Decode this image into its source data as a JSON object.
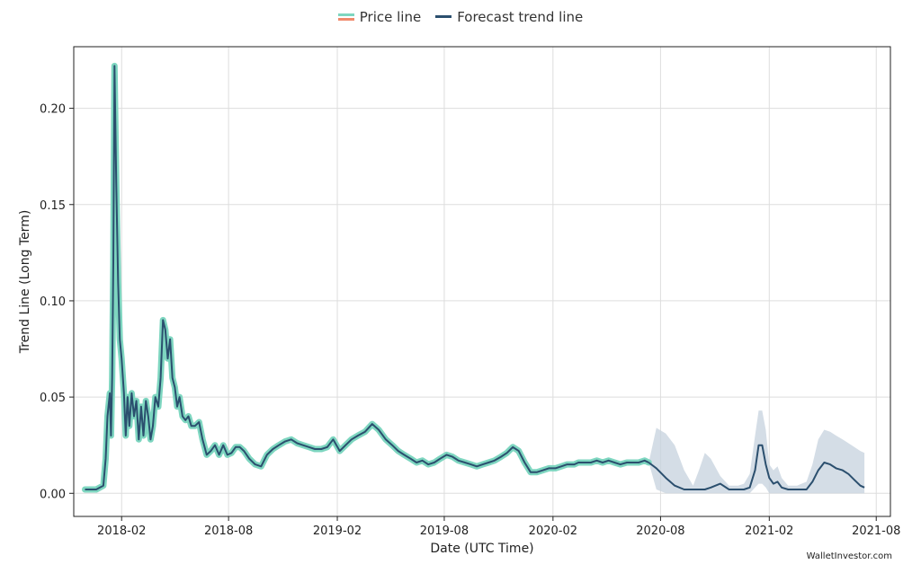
{
  "legend": {
    "price_label": "Price line",
    "forecast_label": "Forecast trend line"
  },
  "watermark": "WalletInvestor.com",
  "colors": {
    "price": "#7ed6c0",
    "price_accent": "#f08a6c",
    "trend": "#2b4f6e",
    "band": "#c6d2de",
    "grid": "#dddddd"
  },
  "chart_data": {
    "type": "line",
    "title": "",
    "xlabel": "Date (UTC Time)",
    "ylabel": "Trend Line (Long Term)",
    "x_ticks": [
      "2018-02",
      "2018-08",
      "2019-02",
      "2019-08",
      "2020-02",
      "2020-08",
      "2021-02",
      "2021-08"
    ],
    "y_ticks": [
      "0.00",
      "0.05",
      "0.10",
      "0.15",
      "0.20"
    ],
    "xlim": [
      "2017-11-12",
      "2021-08-25"
    ],
    "ylim": [
      -0.012,
      0.232
    ],
    "grid": true,
    "legend_position": "top-center",
    "series": [
      {
        "name": "Price line",
        "x": [
          "2017-12-01",
          "2017-12-20",
          "2018-01-01",
          "2018-01-05",
          "2018-01-08",
          "2018-01-12",
          "2018-01-14",
          "2018-01-16",
          "2018-01-18",
          "2018-01-20",
          "2018-01-23",
          "2018-01-26",
          "2018-01-29",
          "2018-02-01",
          "2018-02-05",
          "2018-02-08",
          "2018-02-11",
          "2018-02-14",
          "2018-02-18",
          "2018-02-22",
          "2018-02-26",
          "2018-03-02",
          "2018-03-06",
          "2018-03-10",
          "2018-03-14",
          "2018-03-18",
          "2018-03-22",
          "2018-03-26",
          "2018-03-30",
          "2018-04-04",
          "2018-04-08",
          "2018-04-12",
          "2018-04-16",
          "2018-04-20",
          "2018-04-24",
          "2018-04-28",
          "2018-05-02",
          "2018-05-06",
          "2018-05-10",
          "2018-05-15",
          "2018-05-20",
          "2018-05-25",
          "2018-05-30",
          "2018-06-05",
          "2018-06-12",
          "2018-06-18",
          "2018-06-25",
          "2018-07-02",
          "2018-07-09",
          "2018-07-16",
          "2018-07-23",
          "2018-07-30",
          "2018-08-06",
          "2018-08-13",
          "2018-08-20",
          "2018-08-27",
          "2018-09-05",
          "2018-09-15",
          "2018-09-25",
          "2018-10-05",
          "2018-10-15",
          "2018-10-25",
          "2018-11-05",
          "2018-11-15",
          "2018-11-25",
          "2018-12-05",
          "2018-12-15",
          "2018-12-25",
          "2019-01-05",
          "2019-01-15",
          "2019-01-25",
          "2019-02-05",
          "2019-02-15",
          "2019-02-25",
          "2019-03-08",
          "2019-03-20",
          "2019-04-01",
          "2019-04-12",
          "2019-04-24",
          "2019-05-05",
          "2019-05-15",
          "2019-05-25",
          "2019-06-05",
          "2019-06-15",
          "2019-06-25",
          "2019-07-05",
          "2019-07-15",
          "2019-07-25",
          "2019-08-05",
          "2019-08-15",
          "2019-08-25",
          "2019-09-05",
          "2019-09-15",
          "2019-09-25",
          "2019-10-05",
          "2019-10-15",
          "2019-10-25",
          "2019-11-05",
          "2019-11-15",
          "2019-11-25",
          "2019-12-05",
          "2019-12-15",
          "2019-12-25",
          "2020-01-05",
          "2020-01-15",
          "2020-01-25",
          "2020-02-05",
          "2020-02-15",
          "2020-02-25",
          "2020-03-08",
          "2020-03-15",
          "2020-03-25",
          "2020-04-05",
          "2020-04-15",
          "2020-04-25",
          "2020-05-05",
          "2020-05-15",
          "2020-05-25",
          "2020-06-05",
          "2020-06-15",
          "2020-06-25",
          "2020-07-05",
          "2020-07-12"
        ],
        "values": [
          0.002,
          0.002,
          0.004,
          0.018,
          0.04,
          0.052,
          0.03,
          0.06,
          0.12,
          0.222,
          0.16,
          0.11,
          0.08,
          0.07,
          0.052,
          0.03,
          0.05,
          0.035,
          0.052,
          0.04,
          0.048,
          0.028,
          0.045,
          0.03,
          0.048,
          0.04,
          0.028,
          0.035,
          0.05,
          0.045,
          0.06,
          0.09,
          0.085,
          0.07,
          0.08,
          0.06,
          0.055,
          0.045,
          0.05,
          0.04,
          0.038,
          0.04,
          0.035,
          0.035,
          0.037,
          0.028,
          0.02,
          0.022,
          0.025,
          0.02,
          0.025,
          0.02,
          0.021,
          0.024,
          0.024,
          0.022,
          0.018,
          0.015,
          0.014,
          0.02,
          0.023,
          0.025,
          0.027,
          0.028,
          0.026,
          0.025,
          0.024,
          0.023,
          0.023,
          0.024,
          0.028,
          0.022,
          0.025,
          0.028,
          0.03,
          0.032,
          0.036,
          0.033,
          0.028,
          0.025,
          0.022,
          0.02,
          0.018,
          0.016,
          0.017,
          0.015,
          0.016,
          0.018,
          0.02,
          0.019,
          0.017,
          0.016,
          0.015,
          0.014,
          0.015,
          0.016,
          0.017,
          0.019,
          0.021,
          0.024,
          0.022,
          0.016,
          0.011,
          0.011,
          0.012,
          0.013,
          0.013,
          0.014,
          0.015,
          0.015,
          0.016,
          0.016,
          0.016,
          0.017,
          0.016,
          0.017,
          0.016,
          0.015,
          0.016,
          0.016,
          0.016,
          0.017,
          0.016
        ]
      },
      {
        "name": "Forecast trend line",
        "x": [
          "2020-07-12",
          "2020-07-25",
          "2020-08-10",
          "2020-08-25",
          "2020-09-10",
          "2020-09-25",
          "2020-10-05",
          "2020-10-15",
          "2020-10-25",
          "2020-11-10",
          "2020-11-25",
          "2020-12-10",
          "2020-12-20",
          "2020-12-30",
          "2021-01-08",
          "2021-01-14",
          "2021-01-20",
          "2021-01-26",
          "2021-02-01",
          "2021-02-08",
          "2021-02-15",
          "2021-02-22",
          "2021-03-05",
          "2021-03-20",
          "2021-04-05",
          "2021-04-15",
          "2021-04-25",
          "2021-05-05",
          "2021-05-15",
          "2021-05-25",
          "2021-06-05",
          "2021-06-15",
          "2021-06-25",
          "2021-07-05",
          "2021-07-12"
        ],
        "values": [
          0.016,
          0.013,
          0.008,
          0.004,
          0.002,
          0.002,
          0.002,
          0.002,
          0.003,
          0.005,
          0.002,
          0.002,
          0.002,
          0.003,
          0.012,
          0.025,
          0.025,
          0.015,
          0.008,
          0.005,
          0.006,
          0.003,
          0.002,
          0.002,
          0.002,
          0.006,
          0.012,
          0.016,
          0.015,
          0.013,
          0.012,
          0.01,
          0.007,
          0.004,
          0.003
        ],
        "lower": [
          0.016,
          0.002,
          0.0,
          0.0,
          0.0,
          0.0,
          0.0,
          0.0,
          0.0,
          0.0,
          0.0,
          0.0,
          0.0,
          0.0,
          0.003,
          0.005,
          0.005,
          0.003,
          0.0,
          0.0,
          0.0,
          0.0,
          0.0,
          0.0,
          0.0,
          0.0,
          0.0,
          0.0,
          0.0,
          0.0,
          0.0,
          0.0,
          0.0,
          0.0,
          0.0
        ],
        "upper": [
          0.016,
          0.034,
          0.031,
          0.025,
          0.012,
          0.004,
          0.012,
          0.021,
          0.018,
          0.009,
          0.004,
          0.004,
          0.005,
          0.01,
          0.03,
          0.043,
          0.043,
          0.033,
          0.015,
          0.012,
          0.014,
          0.008,
          0.004,
          0.004,
          0.006,
          0.015,
          0.028,
          0.033,
          0.032,
          0.03,
          0.028,
          0.026,
          0.024,
          0.022,
          0.021
        ]
      }
    ]
  }
}
